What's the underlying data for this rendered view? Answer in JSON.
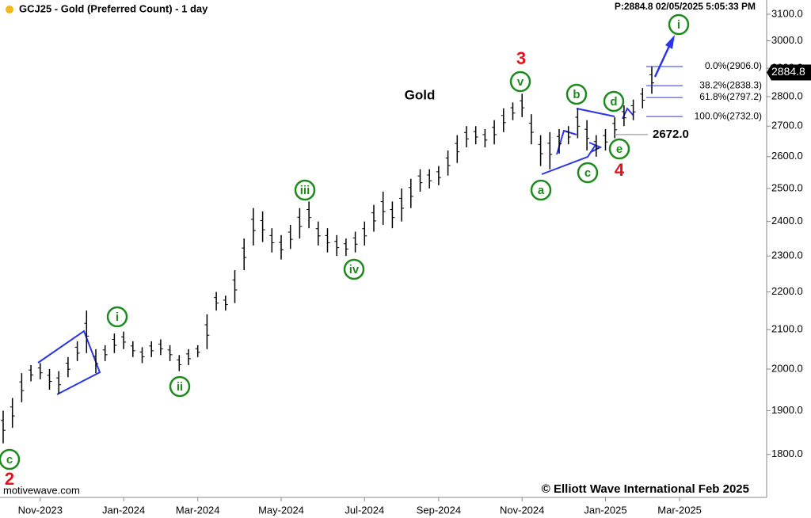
{
  "chart_data": {
    "type": "hlbar",
    "title": "GCJ25 - Gold (Preferred Count) - 1 day",
    "price_info": "P:2884.8  02/05/2025 5:05:33 PM",
    "subtitle": "Gold",
    "source": "motivewave.com",
    "copyright": "© Elliott Wave International Feb 2025",
    "color": "#000000",
    "ylog": true,
    "ylim": [
      1707,
      3155
    ],
    "yticks": [
      {
        "value": 1800,
        "label": "1800.0"
      },
      {
        "value": 1900,
        "label": "1900.0"
      },
      {
        "value": 2000,
        "label": "2000.0"
      },
      {
        "value": 2100,
        "label": "2100.0"
      },
      {
        "value": 2200,
        "label": "2200.0"
      },
      {
        "value": 2300,
        "label": "2300.0"
      },
      {
        "value": 2400,
        "label": "2400.0"
      },
      {
        "value": 2500,
        "label": "2500.0"
      },
      {
        "value": 2600,
        "label": "2600.0"
      },
      {
        "value": 2700,
        "label": "2700.0"
      },
      {
        "value": 2800,
        "label": "2800.0"
      },
      {
        "value": 2900,
        "label": "2900.0"
      },
      {
        "value": 3000,
        "label": "3000.0"
      },
      {
        "value": 3100,
        "label": "3100.0"
      }
    ],
    "categories": [
      null,
      null,
      null,
      null,
      "Nov-2023",
      null,
      null,
      null,
      null,
      null,
      null,
      null,
      null,
      "Jan-2024",
      null,
      null,
      null,
      null,
      null,
      null,
      null,
      "Mar-2024",
      null,
      null,
      null,
      null,
      null,
      null,
      null,
      null,
      "May-2024",
      null,
      null,
      null,
      null,
      null,
      null,
      null,
      null,
      "Jul-2024",
      null,
      null,
      null,
      null,
      null,
      null,
      null,
      "Sep-2024",
      null,
      null,
      null,
      null,
      null,
      null,
      null,
      null,
      "Nov-2024",
      null,
      null,
      null,
      null,
      null,
      null,
      null,
      null,
      "Jan-2025",
      null,
      null,
      null,
      null,
      null,
      null,
      null,
      "Mar-2025",
      null,
      null,
      null,
      null,
      null,
      null,
      null,
      null,
      null
    ],
    "high": [
      1900,
      1930,
      1990,
      2010,
      2015,
      2000,
      1995,
      2030,
      2070,
      2150,
      2050,
      2060,
      2090,
      2095,
      2070,
      2055,
      2070,
      2075,
      2060,
      2035,
      2050,
      2060,
      2140,
      2200,
      2190,
      2260,
      2350,
      2440,
      2430,
      2380,
      2360,
      2390,
      2440,
      2460,
      2400,
      2380,
      2360,
      2350,
      2370,
      2400,
      2450,
      2490,
      2460,
      2500,
      2530,
      2560,
      2560,
      2570,
      2620,
      2670,
      2700,
      2700,
      2690,
      2720,
      2760,
      2780,
      2810,
      2740,
      2670,
      2680,
      2690,
      2700,
      2760,
      2720,
      2670,
      2690,
      2730,
      2770,
      2790,
      2830,
      2906,
      null,
      null,
      null,
      null,
      null,
      null,
      null,
      null,
      null,
      null,
      null,
      null
    ],
    "low": [
      1825,
      1860,
      1920,
      1970,
      1975,
      1950,
      1940,
      1980,
      2020,
      2040,
      1990,
      2020,
      2040,
      2050,
      2030,
      2015,
      2030,
      2035,
      2020,
      1995,
      2010,
      2030,
      2050,
      2150,
      2150,
      2170,
      2260,
      2330,
      2340,
      2310,
      2290,
      2320,
      2350,
      2380,
      2330,
      2310,
      2300,
      2300,
      2310,
      2330,
      2370,
      2390,
      2380,
      2400,
      2440,
      2490,
      2500,
      2510,
      2540,
      2580,
      2630,
      2640,
      2630,
      2640,
      2680,
      2720,
      2730,
      2640,
      2570,
      2560,
      2610,
      2640,
      2660,
      2620,
      2600,
      2620,
      2660,
      2700,
      2720,
      2760,
      2810,
      null,
      null,
      null,
      null,
      null,
      null,
      null,
      null,
      null,
      null,
      null,
      null
    ],
    "wave_labels": [
      "c",
      "2",
      "i",
      "ii",
      "iii",
      "iv",
      "v",
      "3",
      "a",
      "b",
      "c",
      "d",
      "e",
      "4",
      "i"
    ],
    "fib_levels": [
      {
        "value": 2906,
        "label": "0.0%(2906.0)"
      },
      {
        "value": 2838.3,
        "label": "38.2%(2838.3)"
      },
      {
        "value": 2797.2,
        "label": "61.8%(2797.2)"
      },
      {
        "value": 2732,
        "label": "100.0%(2732.0)"
      }
    ],
    "level": {
      "value": 2672,
      "label": "2672.0"
    },
    "last_price": {
      "value": 2884.8,
      "label": "2884.8"
    }
  }
}
